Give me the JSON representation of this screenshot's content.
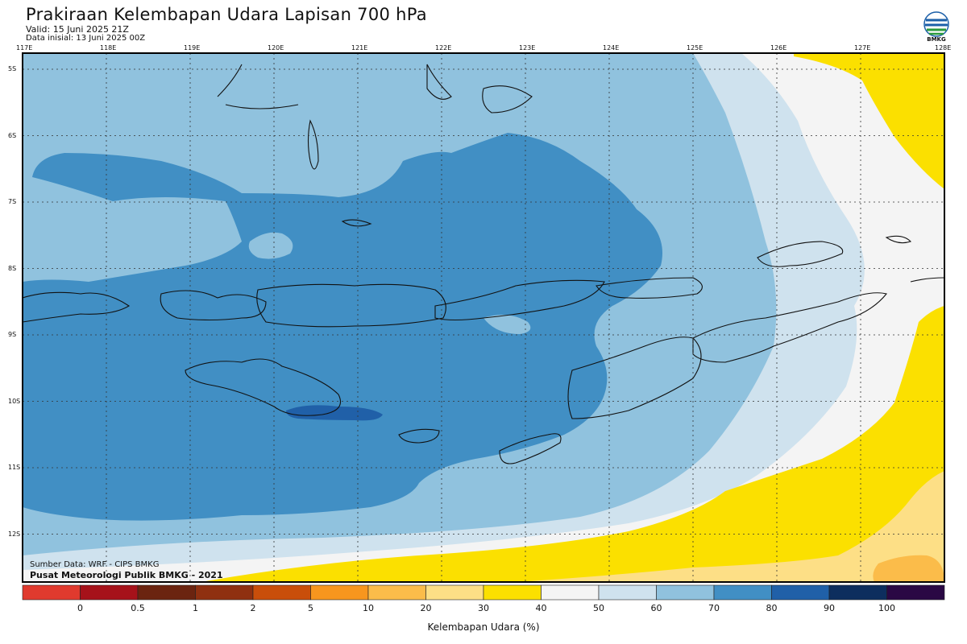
{
  "header": {
    "title": "Prakiraan Kelembapan Udara Lapisan 700 hPa",
    "valid": "Valid: 15 Juni 2025 21Z",
    "init": "Data inisial: 13 Juni 2025 00Z",
    "logo_text": "BMKG"
  },
  "map": {
    "lon_ticks": [
      "117E",
      "118E",
      "119E",
      "120E",
      "121E",
      "122E",
      "123E",
      "124E",
      "125E",
      "126E",
      "127E",
      "128E"
    ],
    "lat_ticks": [
      "5S",
      "6S",
      "7S",
      "8S",
      "9S",
      "10S",
      "11S",
      "12S"
    ]
  },
  "footer": {
    "source": "Sumber Data: WRF - CIPS BMKG",
    "credit": "Pusat Meteorologi Publik BMKG - 2021"
  },
  "legend": {
    "title": "Kelembapan Udara (%)",
    "labels": [
      "0",
      "0.5",
      "1",
      "2",
      "5",
      "10",
      "20",
      "30",
      "40",
      "50",
      "60",
      "70",
      "80",
      "90",
      "100"
    ],
    "colors": [
      "#e03a2e",
      "#a6121a",
      "#6b2410",
      "#8f3010",
      "#c94e0a",
      "#f7961e",
      "#fbbc4a",
      "#fddf86",
      "#fbe000",
      "#f4f4f4",
      "#cfe2ee",
      "#90c2de",
      "#418fc4",
      "#2060a8",
      "#0d2e5e",
      "#2a0844"
    ]
  },
  "colors": {
    "rh_70_80": "#418fc4",
    "rh_60_70": "#90c2de",
    "rh_50_60": "#cfe2ee",
    "rh_40_50": "#f4f4f4",
    "rh_30_40": "#fbe000",
    "rh_20_30": "#fddf86",
    "rh_10_20": "#fbbc4a",
    "rh_80_90": "#2060a8"
  }
}
